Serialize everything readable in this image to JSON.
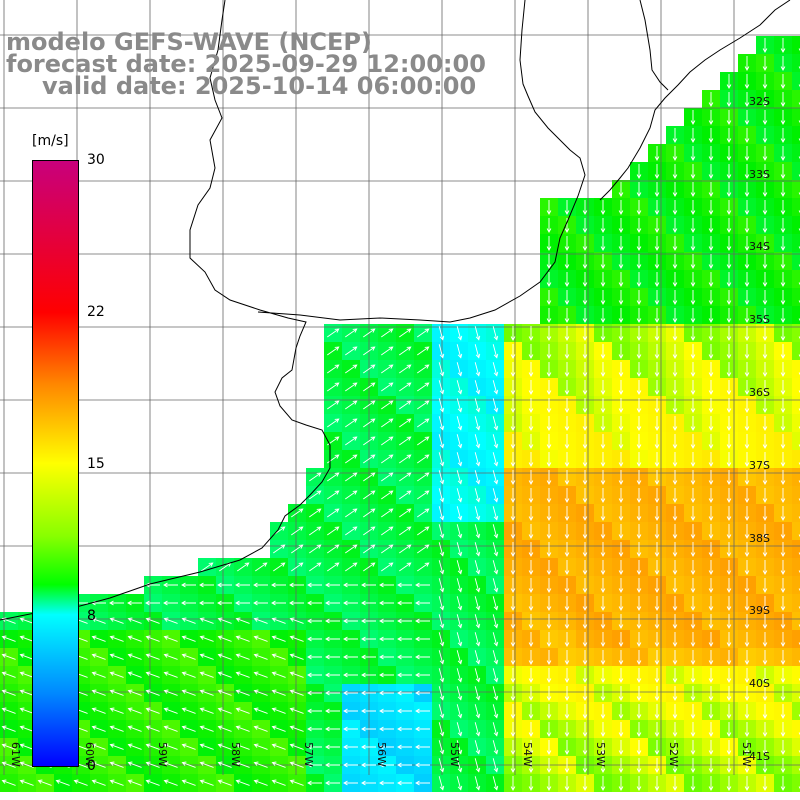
{
  "titles": {
    "line1": "modelo GEFS-WAVE (NCEP)",
    "line2": "forecast date: 2025-09-29 12:00:00",
    "line3": "valid date: 2025-10-14 06:00:00"
  },
  "colorbar": {
    "unit": "[m/s]",
    "ticks": [
      "30",
      "22",
      "15",
      "8",
      "0"
    ],
    "colors": [
      "#c8007c",
      "#ff0000",
      "#ff8800",
      "#ffff00",
      "#88ff00",
      "#00ff00",
      "#00ffff",
      "#0088ff",
      "#0000ff"
    ]
  },
  "lat_labels": [
    "32S",
    "33S",
    "34S",
    "35S",
    "36S",
    "37S",
    "38S",
    "39S",
    "40S",
    "41S"
  ],
  "lon_labels": [
    "61W",
    "60W",
    "59W",
    "58W",
    "57W",
    "56W",
    "55W",
    "54W",
    "53W",
    "52W",
    "51W"
  ],
  "wind_field": {
    "description_colors": {
      "land": "#ffffff",
      "grid": "#666666",
      "coast": "#000000",
      "arrow": "#ffffff"
    }
  }
}
